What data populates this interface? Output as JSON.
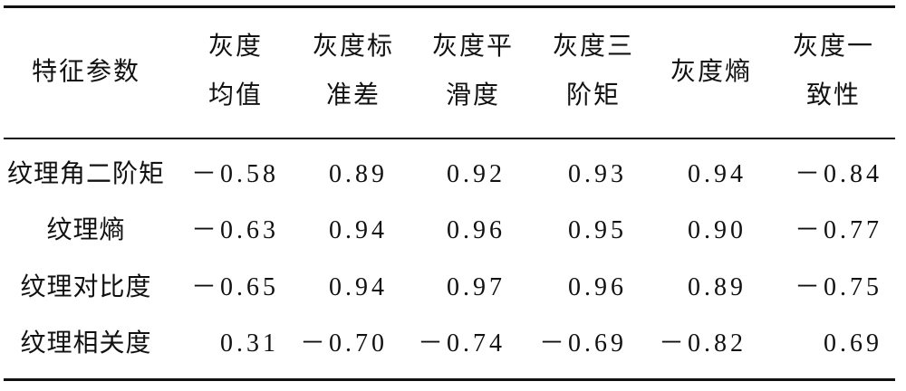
{
  "table": {
    "header": [
      [
        "特征参数"
      ],
      [
        "灰度",
        "均值"
      ],
      [
        "灰度标",
        "准差"
      ],
      [
        "灰度平",
        "滑度"
      ],
      [
        "灰度三",
        "阶矩"
      ],
      [
        "灰度熵"
      ],
      [
        "灰度一",
        "致性"
      ]
    ],
    "rows": [
      [
        "纹理角二阶矩",
        "－0.58",
        "0.89",
        "0.92",
        "0.93",
        "0.94",
        "－0.84"
      ],
      [
        "纹理熵",
        "－0.63",
        "0.94",
        "0.96",
        "0.95",
        "0.90",
        "－0.77"
      ],
      [
        "纹理对比度",
        "－0.65",
        "0.94",
        "0.97",
        "0.96",
        "0.89",
        "－0.75"
      ],
      [
        "纹理相关度",
        "0.31",
        "－0.70",
        "－0.74",
        "－0.69",
        "－0.82",
        "0.69"
      ]
    ]
  }
}
